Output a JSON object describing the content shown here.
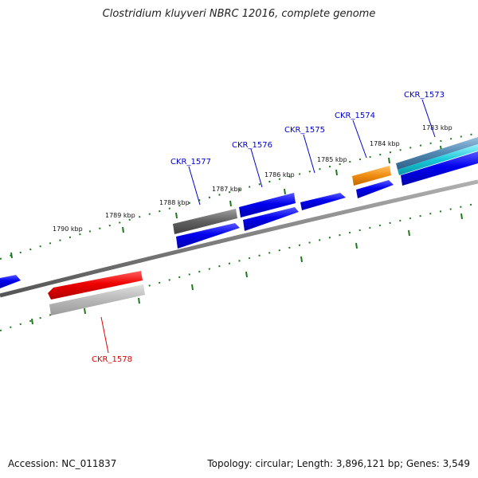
{
  "title": "Clostridium kluyveri NBRC 12016, complete genome",
  "footer": {
    "accession": "Accession: NC_011837",
    "topology": "Topology: circular; Length: 3,896,121 bp; Genes: 3,549"
  },
  "scale_labels": [
    "1783 kbp",
    "1784 kbp",
    "1785 kbp",
    "1786 kbp",
    "1787 kbp",
    "1788 kbp",
    "1789 kbp",
    "1790 kbp"
  ],
  "gene_labels": [
    {
      "text": "CKR_1573",
      "color": "#0000cc"
    },
    {
      "text": "CKR_1574",
      "color": "#0000cc"
    },
    {
      "text": "CKR_1575",
      "color": "#0000cc"
    },
    {
      "text": "CKR_1576",
      "color": "#0000cc"
    },
    {
      "text": "CKR_1577",
      "color": "#0000cc"
    },
    {
      "text": "CKR_1578",
      "color": "#dd0000"
    }
  ],
  "colors": {
    "backbone": "#808080",
    "tick": "#1f7a1f",
    "gene_blue": "#0000ee",
    "gene_red": "#ee0000",
    "gene_orange": "#f08c10",
    "gene_gray": "#666666",
    "gene_cyan": "#18c8d8",
    "gene_steel": "#4f87b0"
  }
}
